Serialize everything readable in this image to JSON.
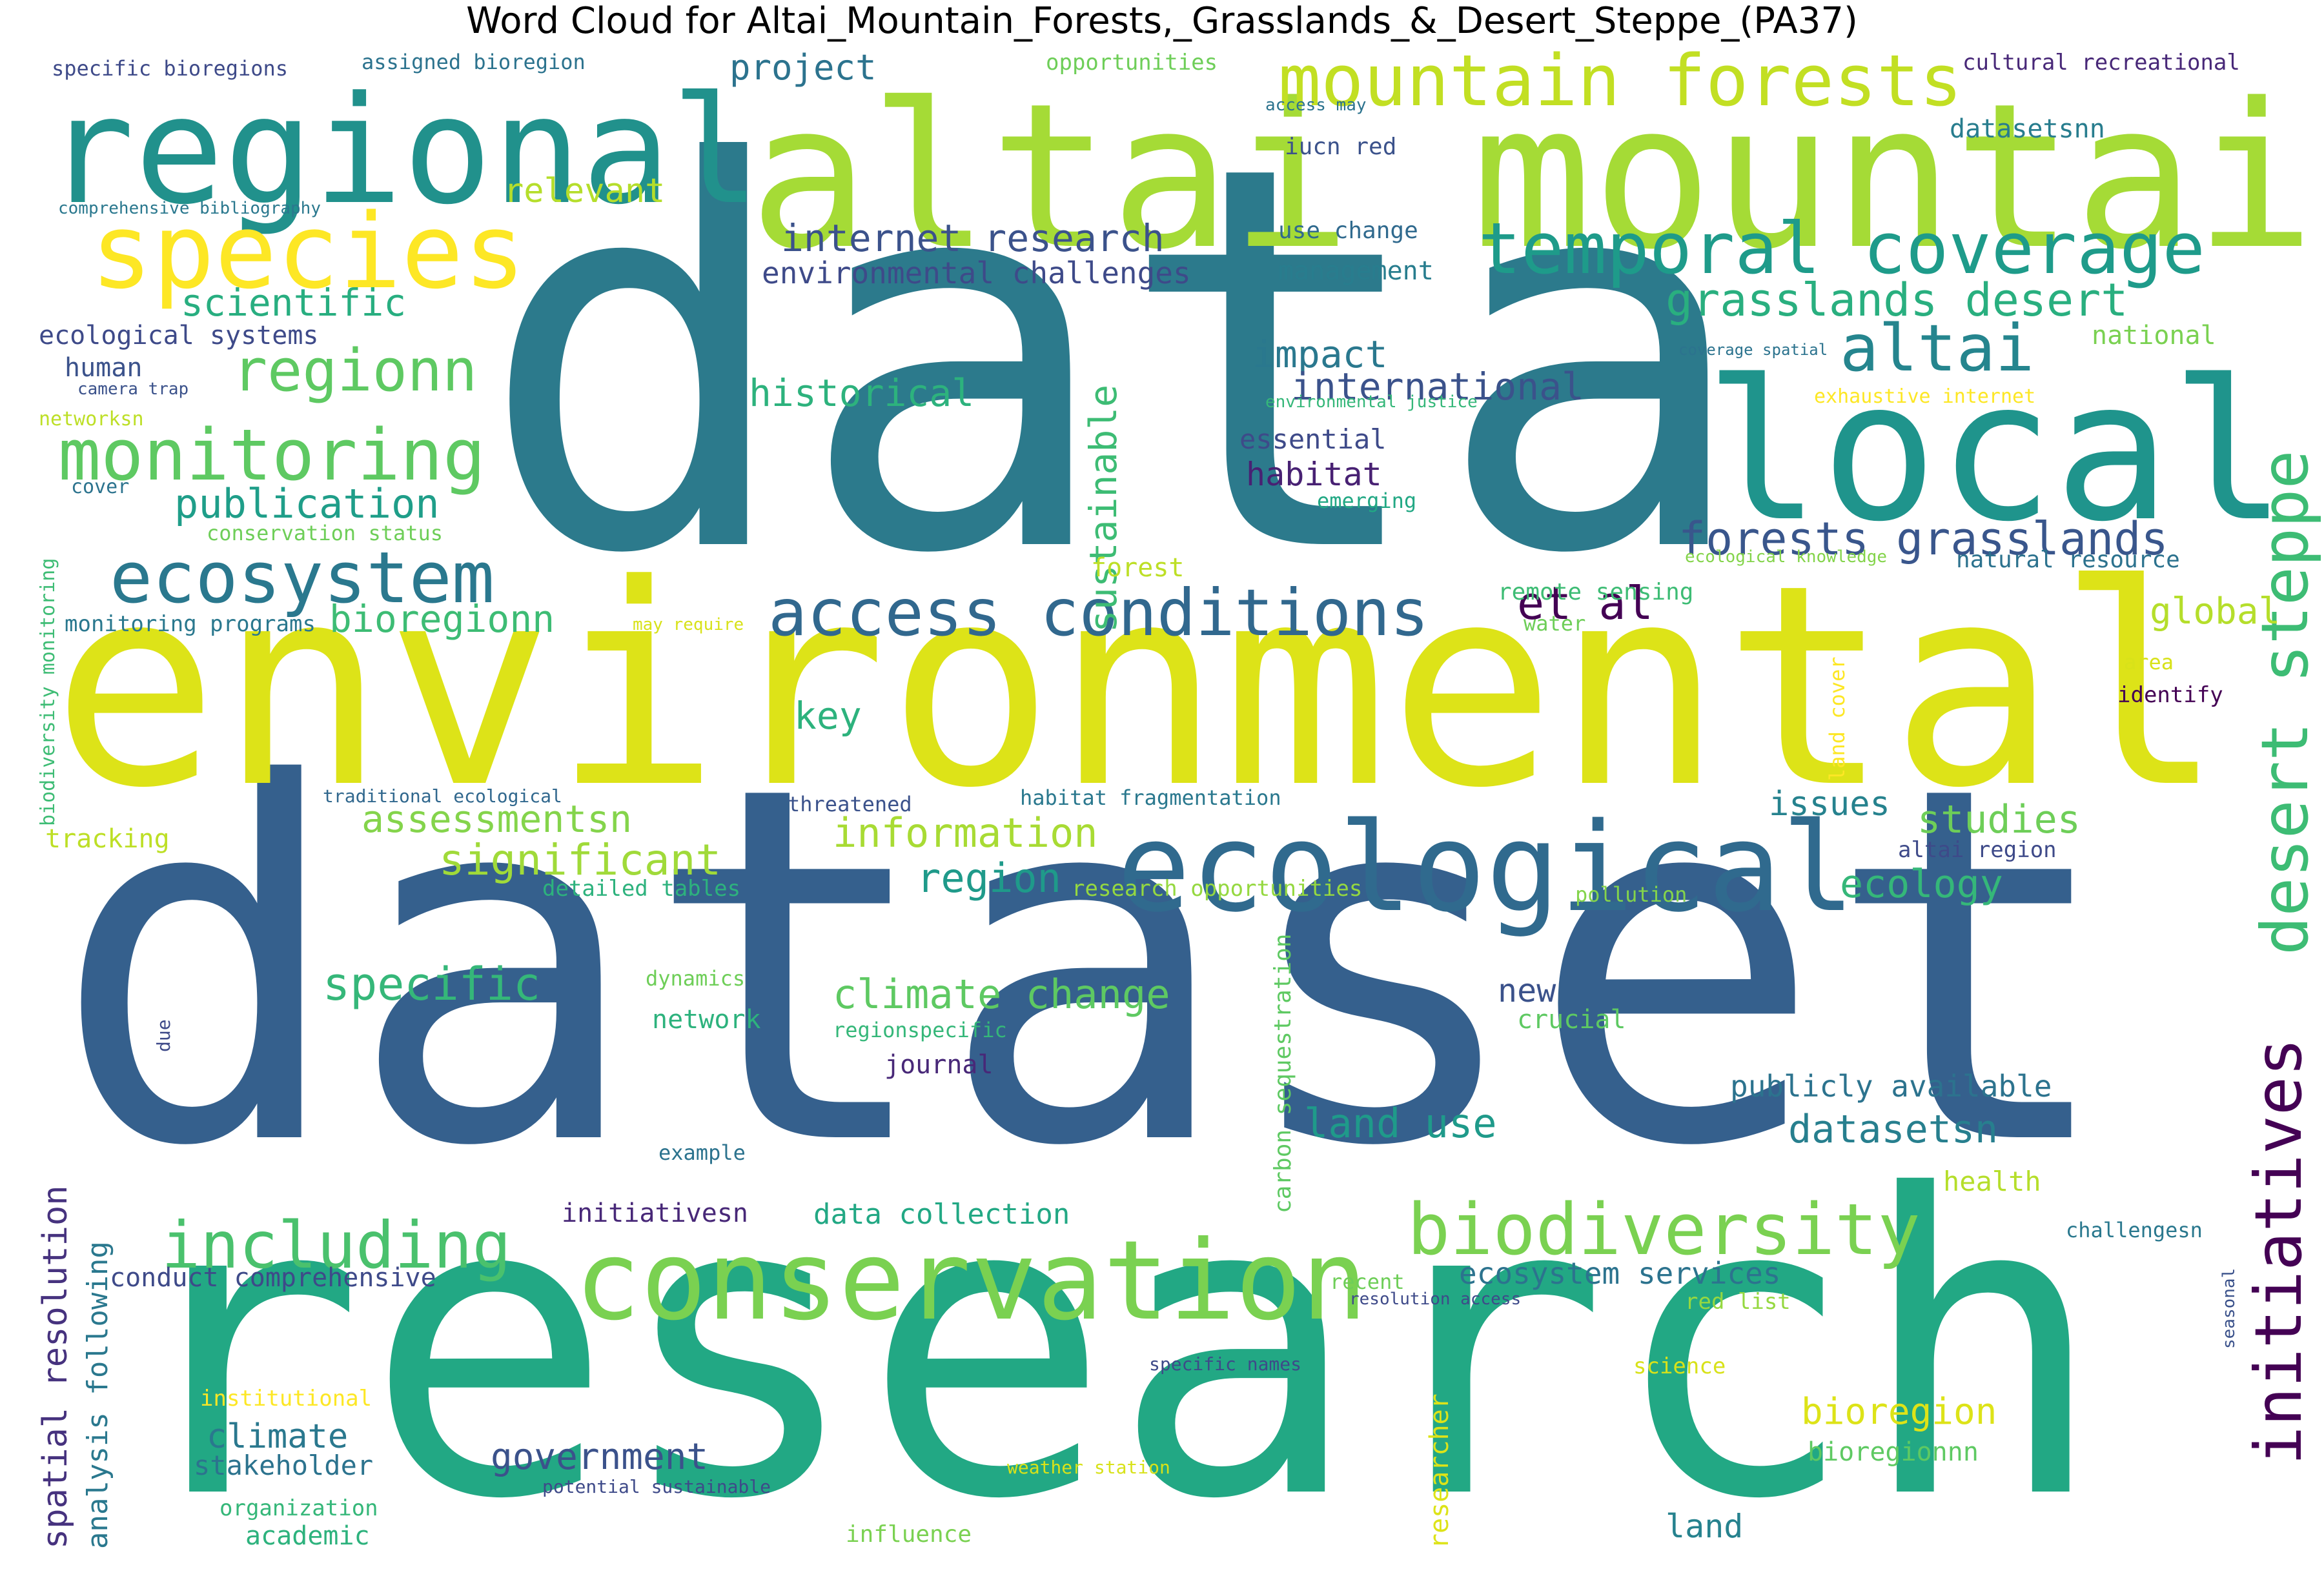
{
  "title": "Word Cloud for Altai_Mountain_Forests,_Grasslands_&_Desert_Steppe_(PA37)",
  "words": [
    {
      "text": "data",
      "color": "#2c7a8c"
    },
    {
      "text": "dataset",
      "color": "#35608d"
    },
    {
      "text": "research",
      "color": "#22a884"
    },
    {
      "text": "environmental",
      "color": "#dde318"
    },
    {
      "text": "altai mountain",
      "color": "#a5db36"
    },
    {
      "text": "regional",
      "color": "#21918c"
    },
    {
      "text": "species",
      "color": "#fde725"
    },
    {
      "text": "local",
      "color": "#1f948c"
    },
    {
      "text": "conservation",
      "color": "#7ad151"
    },
    {
      "text": "ecological",
      "color": "#306a8e"
    },
    {
      "text": "mountain forests",
      "color": "#c2df23"
    },
    {
      "text": "temporal coverage",
      "color": "#1e9b8a"
    },
    {
      "text": "monitoring",
      "color": "#5ec962"
    },
    {
      "text": "ecosystem",
      "color": "#2a788e"
    },
    {
      "text": "access conditions",
      "color": "#31688e"
    },
    {
      "text": "biodiversity",
      "color": "#7ad151"
    },
    {
      "text": "including",
      "color": "#4ac16d"
    },
    {
      "text": "altai",
      "color": "#25858e"
    },
    {
      "text": "desert steppe",
      "color": "#3dbc74"
    },
    {
      "text": "initiatives",
      "color": "#440154"
    },
    {
      "text": "regionn",
      "color": "#5ec962"
    },
    {
      "text": "grasslands desert",
      "color": "#29af7f"
    },
    {
      "text": "forests grasslands",
      "color": "#39568c"
    },
    {
      "text": "internet research",
      "color": "#3b528b"
    },
    {
      "text": "environmental challenges",
      "color": "#3e4a89"
    },
    {
      "text": "scientific",
      "color": "#28ae80"
    },
    {
      "text": "publication",
      "color": "#1f9e89"
    },
    {
      "text": "bioregionn",
      "color": "#3dbc74"
    },
    {
      "text": "historical",
      "color": "#2db27d"
    },
    {
      "text": "sustainable",
      "color": "#3dbc74"
    },
    {
      "text": "significant",
      "color": "#a0da39"
    },
    {
      "text": "assessmentsn",
      "color": "#84d44b"
    },
    {
      "text": "information",
      "color": "#a8db34"
    },
    {
      "text": "region",
      "color": "#1f9a8a"
    },
    {
      "text": "climate change",
      "color": "#5ec962"
    },
    {
      "text": "specific",
      "color": "#35b779"
    },
    {
      "text": "et al",
      "color": "#440154"
    },
    {
      "text": "key",
      "color": "#2db27d"
    },
    {
      "text": "impact",
      "color": "#2a788e"
    },
    {
      "text": "international",
      "color": "#3b528b"
    },
    {
      "text": "habitat",
      "color": "#482173"
    },
    {
      "text": "essential",
      "color": "#3e4a89"
    },
    {
      "text": "project",
      "color": "#2c738e"
    },
    {
      "text": "relevant",
      "color": "#b5de2b"
    },
    {
      "text": "management",
      "color": "#287d8e"
    },
    {
      "text": "use change",
      "color": "#306a8e"
    },
    {
      "text": "iucn red",
      "color": "#3b528b"
    },
    {
      "text": "datasetsnn",
      "color": "#287d8e"
    },
    {
      "text": "ecological systems",
      "color": "#3e4a89"
    },
    {
      "text": "human",
      "color": "#3b528b"
    },
    {
      "text": "camera trap",
      "color": "#3b528b"
    },
    {
      "text": "networksn",
      "color": "#bddf26"
    },
    {
      "text": "cover",
      "color": "#2c738e"
    },
    {
      "text": "conservation status",
      "color": "#6ece58"
    },
    {
      "text": "monitoring programs",
      "color": "#2a788e"
    },
    {
      "text": "biodiversity monitoring",
      "color": "#3dbc74"
    },
    {
      "text": "tracking",
      "color": "#bddf26"
    },
    {
      "text": "traditional ecological",
      "color": "#31688e"
    },
    {
      "text": "detailed tables",
      "color": "#2db27d"
    },
    {
      "text": "threatened",
      "color": "#3b528b"
    },
    {
      "text": "habitat fragmentation",
      "color": "#2a788e"
    },
    {
      "text": "research opportunities",
      "color": "#95d840"
    },
    {
      "text": "issues",
      "color": "#26828e"
    },
    {
      "text": "studies",
      "color": "#6ece58"
    },
    {
      "text": "ecology",
      "color": "#35b779"
    },
    {
      "text": "altai region",
      "color": "#3e4a89"
    },
    {
      "text": "pollution",
      "color": "#84d44b"
    },
    {
      "text": "global",
      "color": "#b5de2b"
    },
    {
      "text": "identify",
      "color": "#440154"
    },
    {
      "text": "area",
      "color": "#d8e219"
    },
    {
      "text": "land cover",
      "color": "#fde725"
    },
    {
      "text": "water",
      "color": "#6ece58"
    },
    {
      "text": "remote sensing",
      "color": "#3dbc74"
    },
    {
      "text": "may require",
      "color": "#d8e219"
    },
    {
      "text": "forest",
      "color": "#bddf26"
    },
    {
      "text": "natural resource",
      "color": "#2c728e"
    },
    {
      "text": "ecological knowledge",
      "color": "#84d44b"
    },
    {
      "text": "emerging",
      "color": "#22a884"
    },
    {
      "text": "environmental justice",
      "color": "#35b779"
    },
    {
      "text": "exhaustive internet",
      "color": "#fde725"
    },
    {
      "text": "coverage spatial",
      "color": "#2c738e"
    },
    {
      "text": "national",
      "color": "#7ad151"
    },
    {
      "text": "opportunities",
      "color": "#6ece58"
    },
    {
      "text": "access may",
      "color": "#2c738e"
    },
    {
      "text": "cultural recreational",
      "color": "#482878"
    },
    {
      "text": "specific bioregions",
      "color": "#3e4a89"
    },
    {
      "text": "assigned bioregion",
      "color": "#2c738e"
    },
    {
      "text": "comprehensive bibliography",
      "color": "#2a788e"
    },
    {
      "text": "new",
      "color": "#3b528b"
    },
    {
      "text": "crucial",
      "color": "#5ec962"
    },
    {
      "text": "publicly available",
      "color": "#2c738e"
    },
    {
      "text": "datasetsn",
      "color": "#277f8e"
    },
    {
      "text": "health",
      "color": "#b5de2b"
    },
    {
      "text": "land use",
      "color": "#1f9a8a"
    },
    {
      "text": "network",
      "color": "#2db27d"
    },
    {
      "text": "dynamics",
      "color": "#6ece58"
    },
    {
      "text": "regionspecific",
      "color": "#35b779"
    },
    {
      "text": "journal",
      "color": "#482878"
    },
    {
      "text": "example",
      "color": "#2c738e"
    },
    {
      "text": "carbon sequestration",
      "color": "#5ec962"
    },
    {
      "text": "due",
      "color": "#3e4a89"
    },
    {
      "text": "initiativesn",
      "color": "#482878"
    },
    {
      "text": "data collection",
      "color": "#22a884"
    },
    {
      "text": "conduct comprehensive",
      "color": "#3e4a89"
    },
    {
      "text": "spatial resolution",
      "color": "#46327e"
    },
    {
      "text": "analysis following",
      "color": "#2a788e"
    },
    {
      "text": "climate",
      "color": "#2a788e"
    },
    {
      "text": "stakeholder",
      "color": "#2c738e"
    },
    {
      "text": "organization",
      "color": "#35b779"
    },
    {
      "text": "academic",
      "color": "#2db27d"
    },
    {
      "text": "institutional",
      "color": "#fde725"
    },
    {
      "text": "government",
      "color": "#3b528b"
    },
    {
      "text": "potential sustainable",
      "color": "#3e4a89"
    },
    {
      "text": "influence",
      "color": "#7ad151"
    },
    {
      "text": "weather station",
      "color": "#d8e219"
    },
    {
      "text": "specific names",
      "color": "#3e4a89"
    },
    {
      "text": "researcher",
      "color": "#dde318"
    },
    {
      "text": "recent",
      "color": "#6ece58"
    },
    {
      "text": "resolution access",
      "color": "#3e4a89"
    },
    {
      "text": "ecosystem services",
      "color": "#2c738e"
    },
    {
      "text": "red list",
      "color": "#95d840"
    },
    {
      "text": "science",
      "color": "#d8e219"
    },
    {
      "text": "bioregion",
      "color": "#dde318"
    },
    {
      "text": "bioregionnn",
      "color": "#5ec962"
    },
    {
      "text": "land",
      "color": "#26828e"
    },
    {
      "text": "challengesn",
      "color": "#2a788e"
    },
    {
      "text": "seasonal",
      "color": "#3b528b"
    }
  ]
}
